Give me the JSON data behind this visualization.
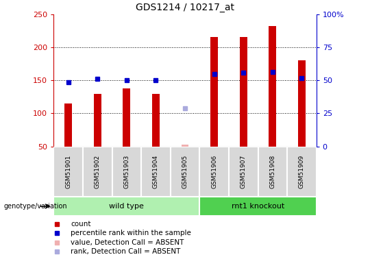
{
  "title": "GDS1214 / 10217_at",
  "samples": [
    "GSM51901",
    "GSM51902",
    "GSM51903",
    "GSM51904",
    "GSM51905",
    "GSM51906",
    "GSM51907",
    "GSM51908",
    "GSM51909"
  ],
  "bar_values": [
    115,
    130,
    138,
    130,
    53,
    215,
    215,
    232,
    180
  ],
  "bar_colors": [
    "#cc0000",
    "#cc0000",
    "#cc0000",
    "#cc0000",
    "#f0b0b0",
    "#cc0000",
    "#cc0000",
    "#cc0000",
    "#cc0000"
  ],
  "rank_values": [
    147,
    152,
    150,
    150,
    null,
    160,
    162,
    163,
    153
  ],
  "absent_value": [
    null,
    null,
    null,
    null,
    53,
    null,
    null,
    null,
    null
  ],
  "absent_rank": [
    null,
    null,
    null,
    null,
    108,
    null,
    null,
    null,
    null
  ],
  "absent_rank_color": "#aaaadd",
  "baseline": 50,
  "ylim_left": [
    50,
    250
  ],
  "ylim_right": [
    0,
    100
  ],
  "yticks_left": [
    50,
    100,
    150,
    200,
    250
  ],
  "yticks_right": [
    0,
    25,
    50,
    75,
    100
  ],
  "ytick_labels_right": [
    "0",
    "25",
    "50",
    "75",
    "100%"
  ],
  "grid_values": [
    100,
    150,
    200
  ],
  "left_axis_color": "#cc0000",
  "right_axis_color": "#0000cc",
  "groups": [
    {
      "label": "wild type",
      "start": 0,
      "end": 4,
      "color": "#b0f0b0"
    },
    {
      "label": "rnt1 knockout",
      "start": 5,
      "end": 8,
      "color": "#50d050"
    }
  ],
  "group_label": "genotype/variation",
  "legend_items": [
    {
      "label": "count",
      "color": "#cc0000"
    },
    {
      "label": "percentile rank within the sample",
      "color": "#0000cc"
    },
    {
      "label": "value, Detection Call = ABSENT",
      "color": "#f0b0b0"
    },
    {
      "label": "rank, Detection Call = ABSENT",
      "color": "#aaaadd"
    }
  ],
  "bar_width": 0.25
}
